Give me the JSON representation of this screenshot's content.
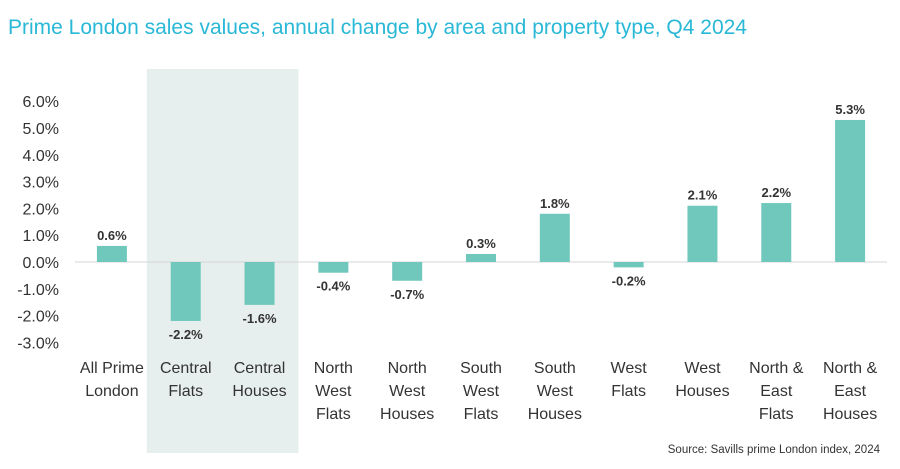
{
  "title": "Prime London sales values, annual change by area and property type, Q4 2024",
  "source": "Source: Savills prime London index, 2024",
  "colors": {
    "bar": "#70c8bd",
    "highlight": "#e6efed",
    "title": "#29b8d6",
    "axis": "#d4d4d4"
  },
  "chart_data": {
    "type": "bar",
    "title": "Prime London sales values, annual change by area and property type, Q4 2024",
    "xlabel": "",
    "ylabel": "",
    "ylim": [
      -3.0,
      6.0
    ],
    "yticks": [
      "6.0%",
      "5.0%",
      "4.0%",
      "3.0%",
      "2.0%",
      "1.0%",
      "0.0%",
      "-1.0%",
      "-2.0%",
      "-3.0%"
    ],
    "ytick_values": [
      6,
      5,
      4,
      3,
      2,
      1,
      0,
      -1,
      -2,
      -3
    ],
    "categories": [
      [
        "All Prime",
        "London"
      ],
      [
        "Central",
        "Flats"
      ],
      [
        "Central",
        "Houses"
      ],
      [
        "North",
        "West",
        "Flats"
      ],
      [
        "North",
        "West",
        "Houses"
      ],
      [
        "South",
        "West",
        "Flats"
      ],
      [
        "South",
        "West",
        "Houses"
      ],
      [
        "West",
        "Flats"
      ],
      [
        "West",
        "Houses"
      ],
      [
        "North &",
        "East",
        "Flats"
      ],
      [
        "North &",
        "East",
        "Houses"
      ]
    ],
    "values": [
      0.6,
      -2.2,
      -1.6,
      -0.4,
      -0.7,
      0.3,
      1.8,
      -0.2,
      2.1,
      2.2,
      5.3
    ],
    "labels": [
      "0.6%",
      "-2.2%",
      "-1.6%",
      "-0.4%",
      "-0.7%",
      "0.3%",
      "1.8%",
      "-0.2%",
      "2.1%",
      "2.2%",
      "5.3%"
    ],
    "highlighted_categories": [
      1,
      2
    ],
    "grid": false,
    "legend": "none"
  }
}
